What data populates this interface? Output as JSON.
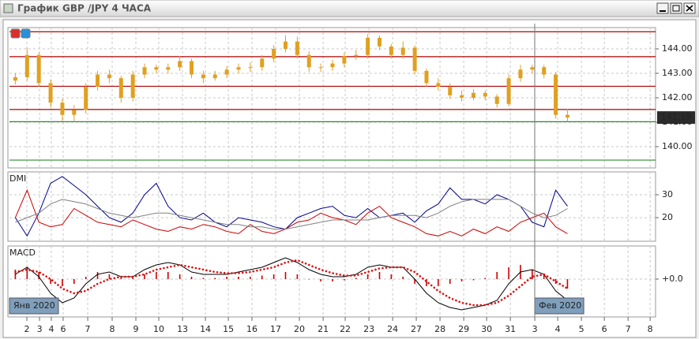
{
  "window": {
    "title": "График GBP /JPY  4 ЧАСА"
  },
  "chart_data": [
    {
      "type": "candlestick",
      "xlim": [
        0,
        55
      ],
      "ylim": [
        139.13,
        144.87
      ],
      "yticks": [
        {
          "value": 140,
          "label": "140.00"
        },
        {
          "value": 141,
          "label": "141.00"
        },
        {
          "value": 142,
          "label": "142.00"
        },
        {
          "value": 143,
          "label": "143.00"
        },
        {
          "value": 144,
          "label": "144.00"
        }
      ],
      "grid": true,
      "color": "#e0a020",
      "last_price": 141.19,
      "levels": [
        {
          "value": 144.7,
          "color": "#b00000"
        },
        {
          "value": 143.68,
          "color": "#b00000"
        },
        {
          "value": 142.47,
          "color": "#b00000"
        },
        {
          "value": 141.52,
          "color": "#b00000"
        },
        {
          "value": 141.02,
          "color": "#2e8b2e"
        },
        {
          "value": 139.45,
          "color": "#2e8b2e"
        }
      ],
      "open": [
        142.7,
        142.84,
        143.75,
        142.6,
        141.8,
        141.3,
        141.5,
        142.45,
        142.95,
        142.8,
        142.0,
        142.95,
        143.25,
        143.15,
        143.25,
        143.5,
        142.95,
        142.8,
        142.95,
        143.15,
        143.25,
        143.25,
        143.6,
        144.0,
        144.3,
        143.75,
        143.25,
        143.25,
        143.4,
        143.7,
        143.75,
        144.45,
        144.1,
        143.75,
        144.05,
        143.1,
        142.6,
        142.45,
        142.1,
        142.0,
        142.2,
        142.05,
        141.75,
        142.8,
        143.15,
        143.25,
        142.95,
        141.3
      ],
      "high": [
        143.0,
        144.05,
        143.85,
        142.75,
        141.95,
        141.7,
        142.6,
        143.1,
        143.15,
        142.9,
        143.1,
        143.4,
        143.35,
        143.4,
        143.7,
        143.6,
        143.1,
        143.1,
        143.3,
        143.4,
        143.45,
        143.75,
        144.15,
        144.55,
        144.5,
        143.9,
        143.4,
        143.55,
        143.85,
        143.95,
        144.6,
        144.55,
        144.2,
        144.3,
        144.15,
        143.2,
        142.8,
        142.6,
        142.3,
        142.35,
        142.3,
        142.15,
        142.95,
        143.35,
        143.35,
        143.35,
        143.05,
        141.55
      ],
      "low": [
        142.55,
        142.7,
        142.45,
        141.6,
        141.05,
        141.05,
        141.35,
        142.3,
        142.6,
        141.8,
        141.85,
        142.8,
        143.0,
        143.0,
        143.1,
        142.8,
        142.6,
        142.7,
        142.8,
        143.0,
        143.05,
        143.1,
        143.45,
        143.85,
        143.6,
        143.05,
        143.05,
        143.1,
        143.25,
        143.55,
        143.6,
        143.95,
        143.6,
        143.6,
        142.95,
        142.45,
        142.3,
        141.95,
        141.85,
        141.9,
        141.9,
        141.6,
        141.65,
        142.65,
        143.0,
        142.8,
        141.15,
        141.05
      ],
      "close": [
        142.84,
        143.75,
        142.6,
        141.8,
        141.3,
        141.5,
        142.45,
        142.95,
        142.8,
        142.0,
        142.95,
        143.25,
        143.15,
        143.25,
        143.5,
        142.95,
        142.8,
        142.95,
        143.15,
        143.25,
        143.25,
        143.6,
        144.0,
        144.3,
        143.75,
        143.25,
        143.25,
        143.4,
        143.7,
        143.75,
        144.45,
        144.1,
        143.75,
        144.05,
        143.1,
        142.6,
        142.45,
        142.1,
        142.0,
        142.2,
        142.05,
        141.75,
        142.8,
        143.15,
        143.25,
        142.95,
        141.3,
        141.19
      ]
    },
    {
      "type": "line",
      "title": "DMI",
      "xlim": [
        0,
        55
      ],
      "ylim": [
        9.7,
        40
      ],
      "yticks": [
        20,
        30
      ],
      "grid": true,
      "series": [
        {
          "color": "#00008b",
          "values": [
            20,
            12,
            22,
            35,
            38,
            34,
            30,
            25,
            20,
            18,
            22,
            30,
            35,
            25,
            20,
            19,
            22,
            18,
            16,
            20,
            19,
            18,
            16,
            15,
            20,
            22,
            24,
            25,
            21,
            20,
            24,
            20,
            21,
            22,
            18,
            23,
            26,
            33,
            28,
            28,
            26,
            30,
            28,
            25,
            18,
            16,
            32,
            25
          ]
        },
        {
          "color": "#cc0000",
          "values": [
            20,
            32,
            18,
            16,
            17,
            24,
            21,
            18,
            17,
            16,
            19,
            17,
            15,
            14,
            16,
            15,
            17,
            16,
            14,
            13,
            17,
            14,
            13,
            15,
            18,
            19,
            22,
            20,
            19,
            17,
            22,
            25,
            20,
            18,
            16,
            13,
            12,
            14,
            12,
            15,
            13,
            16,
            14,
            18,
            20,
            22,
            16,
            13
          ]
        },
        {
          "color": "#808080",
          "values": [
            18,
            20,
            22,
            26,
            28,
            27,
            26,
            24,
            22,
            21,
            20,
            21,
            22,
            22,
            21,
            20,
            19,
            18,
            17,
            17,
            16,
            16,
            15,
            15,
            16,
            17,
            18,
            19,
            19,
            19,
            19,
            20,
            21,
            21,
            21,
            20,
            22,
            25,
            27,
            28,
            28,
            28,
            28,
            25,
            22,
            20,
            21,
            24
          ]
        }
      ]
    },
    {
      "type": "macd",
      "title": "MACD",
      "xlim": [
        0,
        55
      ],
      "ylim": [
        -1.6,
        1.4
      ],
      "yticks": [
        {
          "value": 0,
          "label": "+0.0"
        }
      ],
      "grid": true,
      "xticks": [
        {
          "value": 1.48,
          "label": "2"
        },
        {
          "value": 2.56,
          "label": "3"
        },
        {
          "value": 3.56,
          "label": "4"
        },
        {
          "value": 4.57,
          "label": "6"
        },
        {
          "value": 6.66,
          "label": "7"
        },
        {
          "value": 8.74,
          "label": "8"
        },
        {
          "value": 10.76,
          "label": "9"
        },
        {
          "value": 12.71,
          "label": "10"
        },
        {
          "value": 14.73,
          "label": "13"
        },
        {
          "value": 16.68,
          "label": "14"
        },
        {
          "value": 18.63,
          "label": "15"
        },
        {
          "value": 20.64,
          "label": "16"
        },
        {
          "value": 22.66,
          "label": "17"
        },
        {
          "value": 24.68,
          "label": "20"
        },
        {
          "value": 26.7,
          "label": "21"
        },
        {
          "value": 28.58,
          "label": "22"
        },
        {
          "value": 30.6,
          "label": "23"
        },
        {
          "value": 32.62,
          "label": "24"
        },
        {
          "value": 34.63,
          "label": "27"
        },
        {
          "value": 36.65,
          "label": "28"
        },
        {
          "value": 38.67,
          "label": "29"
        },
        {
          "value": 40.62,
          "label": "30"
        },
        {
          "value": 42.64,
          "label": "31"
        },
        {
          "value": 44.72,
          "label": "3"
        },
        {
          "value": 46.67,
          "label": "4"
        },
        {
          "value": 48.69,
          "label": "5"
        },
        {
          "value": 50.64,
          "label": "6"
        },
        {
          "value": 52.66,
          "label": "7"
        },
        {
          "value": 54.54,
          "label": "8"
        }
      ],
      "period_labels": [
        {
          "value": 0,
          "label": "Янв 2020"
        },
        {
          "value": 44.72,
          "label": "Фев 2020"
        }
      ],
      "histogram": {
        "color": "#cc0000",
        "values": [
          0.4,
          0.5,
          0.3,
          -0.2,
          -0.3,
          -0.2,
          0.1,
          0.3,
          0.2,
          0.1,
          0.1,
          0.2,
          0.3,
          0.3,
          0.2,
          0.1,
          0.05,
          0.05,
          0.1,
          0.1,
          0.1,
          0.15,
          0.2,
          0.3,
          0.2,
          0.0,
          -0.1,
          -0.1,
          -0.05,
          0.05,
          0.2,
          0.3,
          0.2,
          0.1,
          -0.2,
          -0.3,
          -0.3,
          -0.2,
          -0.1,
          -0.05,
          0.05,
          0.3,
          0.5,
          0.6,
          0.4,
          0.2,
          -0.2,
          -0.4
        ]
      },
      "series": [
        {
          "color": "#000000",
          "values": [
            0.2,
            0.5,
            0.1,
            -0.6,
            -1.0,
            -0.8,
            -0.2,
            0.2,
            0.3,
            0.1,
            0.1,
            0.4,
            0.6,
            0.7,
            0.6,
            0.3,
            0.2,
            0.2,
            0.2,
            0.3,
            0.4,
            0.5,
            0.7,
            0.9,
            0.7,
            0.4,
            0.2,
            0.1,
            0.1,
            0.2,
            0.5,
            0.6,
            0.5,
            0.5,
            0.0,
            -0.6,
            -1.0,
            -1.2,
            -1.3,
            -1.2,
            -1.1,
            -0.9,
            -0.2,
            0.3,
            0.4,
            0.2,
            -0.5,
            -0.9
          ]
        },
        {
          "color": "#dd1111",
          "dotted": true,
          "values": [
            0.3,
            0.4,
            0.3,
            0.0,
            -0.4,
            -0.6,
            -0.5,
            -0.2,
            0.0,
            0.1,
            0.1,
            0.2,
            0.4,
            0.5,
            0.6,
            0.5,
            0.4,
            0.3,
            0.25,
            0.25,
            0.3,
            0.4,
            0.5,
            0.7,
            0.8,
            0.6,
            0.4,
            0.25,
            0.15,
            0.15,
            0.3,
            0.45,
            0.5,
            0.5,
            0.3,
            -0.1,
            -0.5,
            -0.8,
            -1.0,
            -1.1,
            -1.1,
            -1.0,
            -0.7,
            -0.3,
            0.1,
            0.2,
            -0.1,
            -0.4
          ]
        }
      ]
    }
  ]
}
